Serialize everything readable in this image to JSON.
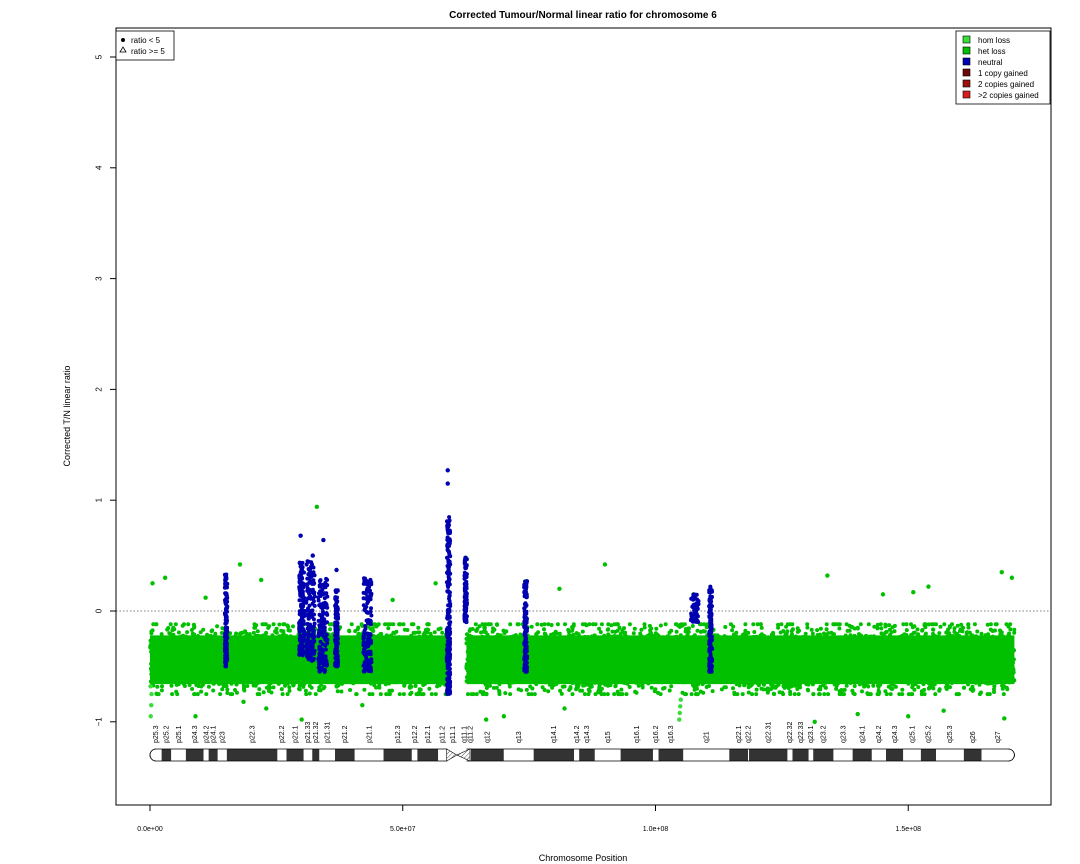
{
  "chart_data": {
    "type": "scatter",
    "title": "Corrected Tumour/Normal linear ratio for chromosome  6",
    "xlabel": "Chromosome Position",
    "ylabel": "Corrected T/N linear ratio",
    "xlim": [
      0,
      180000000
    ],
    "ylim": [
      -1.75,
      5.25
    ],
    "x_ticks": [
      0,
      50000000,
      100000000,
      150000000
    ],
    "x_tick_labels": [
      "0.0e+00",
      "5.0e+07",
      "1.0e+08",
      "1.5e+08"
    ],
    "y_ticks": [
      -1,
      0,
      1,
      2,
      3,
      4,
      5
    ],
    "y_tick_labels": [
      "−1",
      "0",
      "1",
      "2",
      "3",
      "4",
      "5"
    ],
    "reference_line_y": 0,
    "chromosome_length": 171000000,
    "centromere_x": [
      58800000,
      62600000
    ],
    "shape_legend": {
      "position": "top-left",
      "entries": [
        {
          "symbol": "filled-circle",
          "label": "ratio < 5"
        },
        {
          "symbol": "open-triangle",
          "label": "ratio >= 5"
        }
      ]
    },
    "color_legend": {
      "position": "top-right",
      "entries": [
        {
          "label": "hom loss",
          "color": "#3bdd3b"
        },
        {
          "label": "het loss",
          "color": "#00c000"
        },
        {
          "label": "neutral",
          "color": "#0000b0"
        },
        {
          "label": "1 copy gained",
          "color": "#6b0a0a"
        },
        {
          "label": "2 copies gained",
          "color": "#9c1010"
        },
        {
          "label": ">2 copies gained",
          "color": "#d81c1c"
        }
      ]
    },
    "series": [
      {
        "name": "het loss",
        "color": "#00c000",
        "x_range": [
          0,
          171000000
        ],
        "gap": [
          58800000,
          62600000
        ],
        "y_range": [
          -0.75,
          -0.12
        ],
        "points": [
          {
            "x": 500000,
            "y": 0.25
          },
          {
            "x": 3000000,
            "y": 0.3
          },
          {
            "x": 11000000,
            "y": 0.12
          },
          {
            "x": 17800000,
            "y": 0.42
          },
          {
            "x": 22000000,
            "y": 0.28
          },
          {
            "x": 33000000,
            "y": 0.94
          },
          {
            "x": 48000000,
            "y": 0.1
          },
          {
            "x": 56500000,
            "y": 0.25
          },
          {
            "x": 62500000,
            "y": 0.48
          },
          {
            "x": 74500000,
            "y": 0.27
          },
          {
            "x": 81000000,
            "y": 0.2
          },
          {
            "x": 90000000,
            "y": 0.42
          },
          {
            "x": 107500000,
            "y": 0.15
          },
          {
            "x": 134000000,
            "y": 0.32
          },
          {
            "x": 145000000,
            "y": 0.15
          },
          {
            "x": 151000000,
            "y": 0.17
          },
          {
            "x": 154000000,
            "y": 0.22
          },
          {
            "x": 168500000,
            "y": 0.35
          },
          {
            "x": 170500000,
            "y": 0.3
          },
          {
            "x": 9000000,
            "y": -0.95
          },
          {
            "x": 23000000,
            "y": -0.88
          },
          {
            "x": 30000000,
            "y": -0.98
          },
          {
            "x": 42000000,
            "y": -0.85
          },
          {
            "x": 66500000,
            "y": -0.98
          },
          {
            "x": 70000000,
            "y": -0.95
          },
          {
            "x": 82000000,
            "y": -0.88
          },
          {
            "x": 140000000,
            "y": -0.93
          },
          {
            "x": 150000000,
            "y": -0.95
          },
          {
            "x": 157000000,
            "y": -0.9
          },
          {
            "x": 169000000,
            "y": -0.97
          },
          {
            "x": 131500000,
            "y": -1.0
          },
          {
            "x": 18500000,
            "y": -0.82
          }
        ]
      },
      {
        "name": "hom loss",
        "color": "#3bdd3b",
        "points": [
          {
            "x": 150000,
            "y": -0.95
          },
          {
            "x": 250000,
            "y": -0.85
          },
          {
            "x": 300000,
            "y": -0.75
          },
          {
            "x": 100000,
            "y": -0.68
          },
          {
            "x": 104700000,
            "y": -0.98
          },
          {
            "x": 104800000,
            "y": -0.92
          },
          {
            "x": 104900000,
            "y": -0.86
          },
          {
            "x": 105000000,
            "y": -0.8
          }
        ]
      },
      {
        "name": "neutral",
        "color": "#0000b0",
        "clusters": [
          {
            "x_range": [
              14800000,
              15300000
            ],
            "y_range": [
              -0.5,
              0.33
            ]
          },
          {
            "x_range": [
              29500000,
              30500000
            ],
            "y_range": [
              -0.4,
              0.45
            ]
          },
          {
            "x_range": [
              30800000,
              32600000
            ],
            "y_range": [
              -0.45,
              0.45
            ]
          },
          {
            "x_range": [
              33300000,
              35100000
            ],
            "y_range": [
              -0.55,
              0.3
            ]
          },
          {
            "x_range": [
              36600000,
              37200000
            ],
            "y_range": [
              -0.5,
              0.2
            ]
          },
          {
            "x_range": [
              42200000,
              43800000
            ],
            "y_range": [
              -0.55,
              0.3
            ]
          },
          {
            "x_range": [
              58700000,
              59400000
            ],
            "y_range": [
              -0.75,
              0.85
            ]
          },
          {
            "x_range": [
              62200000,
              62700000
            ],
            "y_range": [
              -0.1,
              0.48
            ]
          },
          {
            "x_range": [
              74000000,
              74600000
            ],
            "y_range": [
              -0.55,
              0.27
            ]
          },
          {
            "x_range": [
              107000000,
              108500000
            ],
            "y_range": [
              -0.1,
              0.15
            ]
          },
          {
            "x_range": [
              110600000,
              111200000
            ],
            "y_range": [
              -0.55,
              0.22
            ]
          }
        ],
        "points": [
          {
            "x": 29800000,
            "y": 0.68
          },
          {
            "x": 32200000,
            "y": 0.5
          },
          {
            "x": 34300000,
            "y": 0.64
          },
          {
            "x": 36900000,
            "y": 0.37
          },
          {
            "x": 58900000,
            "y": 1.27
          },
          {
            "x": 58900000,
            "y": 1.15
          },
          {
            "x": 62400000,
            "y": 0.48
          }
        ]
      }
    ],
    "ideogram": {
      "bands": [
        {
          "name": "p25.3",
          "start": 0,
          "end": 2300000,
          "stain": "gneg"
        },
        {
          "name": "p25.2",
          "start": 2300000,
          "end": 4200000,
          "stain": "gpos"
        },
        {
          "name": "p25.1",
          "start": 4200000,
          "end": 7100000,
          "stain": "gneg"
        },
        {
          "name": "p24.3",
          "start": 7100000,
          "end": 10600000,
          "stain": "gpos"
        },
        {
          "name": "p24.2",
          "start": 10600000,
          "end": 11600000,
          "stain": "gneg"
        },
        {
          "name": "p24.1",
          "start": 11600000,
          "end": 13400000,
          "stain": "gpos"
        },
        {
          "name": "p23",
          "start": 13400000,
          "end": 15200000,
          "stain": "gneg"
        },
        {
          "name": "p22.3",
          "start": 15200000,
          "end": 25200000,
          "stain": "gpos"
        },
        {
          "name": "p22.2",
          "start": 25200000,
          "end": 27000000,
          "stain": "gneg"
        },
        {
          "name": "p22.1",
          "start": 27000000,
          "end": 30400000,
          "stain": "gpos"
        },
        {
          "name": "p21.33",
          "start": 30400000,
          "end": 32100000,
          "stain": "gneg"
        },
        {
          "name": "p21.32",
          "start": 32100000,
          "end": 33500000,
          "stain": "gpos"
        },
        {
          "name": "p21.31",
          "start": 33500000,
          "end": 36600000,
          "stain": "gneg"
        },
        {
          "name": "p21.2",
          "start": 36600000,
          "end": 40500000,
          "stain": "gpos"
        },
        {
          "name": "p21.1",
          "start": 40500000,
          "end": 46200000,
          "stain": "gneg"
        },
        {
          "name": "p12.3",
          "start": 46200000,
          "end": 51800000,
          "stain": "gpos"
        },
        {
          "name": "p12.2",
          "start": 51800000,
          "end": 52900000,
          "stain": "gneg"
        },
        {
          "name": "p12.1",
          "start": 52900000,
          "end": 57000000,
          "stain": "gpos"
        },
        {
          "name": "p11.2",
          "start": 57000000,
          "end": 58700000,
          "stain": "gneg"
        },
        {
          "name": "p11.1",
          "start": 58700000,
          "end": 61000000,
          "stain": "acen"
        },
        {
          "name": "q11.1",
          "start": 61000000,
          "end": 63300000,
          "stain": "acen"
        },
        {
          "name": "q11.2",
          "start": 63300000,
          "end": 63400000,
          "stain": "gneg"
        },
        {
          "name": "q12",
          "start": 63400000,
          "end": 70000000,
          "stain": "gpos"
        },
        {
          "name": "q13",
          "start": 70000000,
          "end": 75900000,
          "stain": "gneg"
        },
        {
          "name": "q14.1",
          "start": 75900000,
          "end": 83900000,
          "stain": "gpos"
        },
        {
          "name": "q14.2",
          "start": 83900000,
          "end": 84900000,
          "stain": "gneg"
        },
        {
          "name": "q14.3",
          "start": 84900000,
          "end": 88000000,
          "stain": "gpos"
        },
        {
          "name": "q15",
          "start": 88000000,
          "end": 93100000,
          "stain": "gneg"
        },
        {
          "name": "q16.1",
          "start": 93100000,
          "end": 99500000,
          "stain": "gpos"
        },
        {
          "name": "q16.2",
          "start": 99500000,
          "end": 100600000,
          "stain": "gneg"
        },
        {
          "name": "q16.3",
          "start": 100600000,
          "end": 105500000,
          "stain": "gpos"
        },
        {
          "name": "q21",
          "start": 105500000,
          "end": 114600000,
          "stain": "gneg"
        },
        {
          "name": "q22.1",
          "start": 114600000,
          "end": 118300000,
          "stain": "gpos"
        },
        {
          "name": "q22.2",
          "start": 118300000,
          "end": 118500000,
          "stain": "gneg"
        },
        {
          "name": "q22.31",
          "start": 118500000,
          "end": 126100000,
          "stain": "gpos"
        },
        {
          "name": "q22.32",
          "start": 126100000,
          "end": 127100000,
          "stain": "gneg"
        },
        {
          "name": "q22.33",
          "start": 127100000,
          "end": 130300000,
          "stain": "gpos"
        },
        {
          "name": "q23.1",
          "start": 130300000,
          "end": 131200000,
          "stain": "gneg"
        },
        {
          "name": "q23.2",
          "start": 131200000,
          "end": 135200000,
          "stain": "gpos"
        },
        {
          "name": "q23.3",
          "start": 135200000,
          "end": 139000000,
          "stain": "gneg"
        },
        {
          "name": "q24.1",
          "start": 139000000,
          "end": 142800000,
          "stain": "gpos"
        },
        {
          "name": "q24.2",
          "start": 142800000,
          "end": 145600000,
          "stain": "gneg"
        },
        {
          "name": "q24.3",
          "start": 145600000,
          "end": 149000000,
          "stain": "gpos"
        },
        {
          "name": "q25.1",
          "start": 149000000,
          "end": 152500000,
          "stain": "gneg"
        },
        {
          "name": "q25.2",
          "start": 152500000,
          "end": 155500000,
          "stain": "gpos"
        },
        {
          "name": "q25.3",
          "start": 155500000,
          "end": 161000000,
          "stain": "gneg"
        },
        {
          "name": "q26",
          "start": 161000000,
          "end": 164500000,
          "stain": "gpos"
        },
        {
          "name": "q27",
          "start": 164500000,
          "end": 171000000,
          "stain": "gneg"
        }
      ]
    }
  }
}
